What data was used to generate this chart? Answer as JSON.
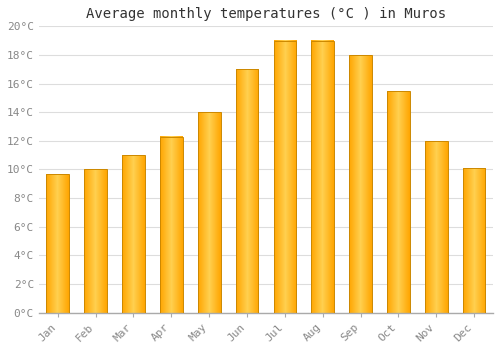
{
  "title": "Average monthly temperatures (°C ) in Muros",
  "months": [
    "Jan",
    "Feb",
    "Mar",
    "Apr",
    "May",
    "Jun",
    "Jul",
    "Aug",
    "Sep",
    "Oct",
    "Nov",
    "Dec"
  ],
  "values": [
    9.7,
    10.0,
    11.0,
    12.3,
    14.0,
    17.0,
    19.0,
    19.0,
    18.0,
    15.5,
    12.0,
    10.1
  ],
  "bar_color_left": "#FFA500",
  "bar_color_center": "#FFD050",
  "bar_color_right": "#FFA500",
  "ylim": [
    0,
    20
  ],
  "ytick_step": 2,
  "background_color": "#FFFFFF",
  "grid_color": "#DDDDDD",
  "title_fontsize": 10,
  "tick_fontsize": 8,
  "font_family": "monospace"
}
